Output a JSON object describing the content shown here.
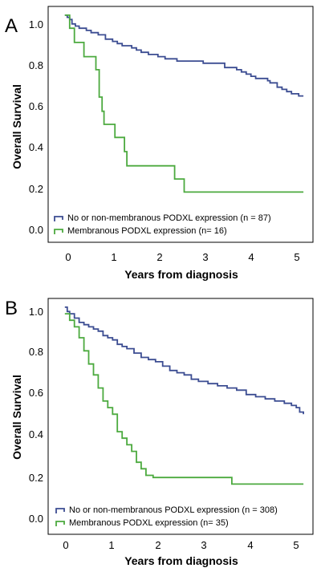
{
  "chart_data": [
    {
      "type": "line",
      "panel": "A",
      "xlabel": "Years from diagnosis",
      "ylabel": "Overall Survival",
      "xlim": [
        -0.35,
        5.2
      ],
      "ylim": [
        -0.04,
        1.04
      ],
      "xticks": [
        "0",
        "1",
        "2",
        "3",
        "4",
        "5"
      ],
      "yticks": [
        "0.0",
        "0.2",
        "0.4",
        "0.6",
        "0.8",
        "1.0"
      ],
      "grid": false,
      "legend_position": "bottom-left",
      "series": [
        {
          "name": "No or non-membranous PODXL expression (n = 87)",
          "color": "#3c4d92",
          "step": "post",
          "x": [
            0,
            0.05,
            0.1,
            0.15,
            0.22,
            0.3,
            0.45,
            0.55,
            0.7,
            0.85,
            1.0,
            1.1,
            1.2,
            1.4,
            1.5,
            1.6,
            1.75,
            1.95,
            2.1,
            2.35,
            2.6,
            2.9,
            3.2,
            3.35,
            3.6,
            3.7,
            3.8,
            3.9,
            4.0,
            4.15,
            4.25,
            4.3,
            4.45,
            4.55,
            4.65,
            4.75,
            4.9,
            5.0
          ],
          "y": [
            1.0,
            0.99,
            0.98,
            0.96,
            0.95,
            0.94,
            0.93,
            0.92,
            0.91,
            0.89,
            0.88,
            0.87,
            0.86,
            0.85,
            0.84,
            0.83,
            0.82,
            0.81,
            0.8,
            0.79,
            0.79,
            0.78,
            0.78,
            0.76,
            0.75,
            0.74,
            0.73,
            0.72,
            0.71,
            0.71,
            0.7,
            0.69,
            0.67,
            0.66,
            0.65,
            0.64,
            0.63,
            0.63
          ]
        },
        {
          "name": "Membranous PODXL expression (n= 16)",
          "color": "#4caa3f",
          "step": "post",
          "x": [
            0,
            0.1,
            0.2,
            0.4,
            0.65,
            0.72,
            0.78,
            0.82,
            1.05,
            1.25,
            1.3,
            2.3,
            2.5,
            5.0
          ],
          "y": [
            1.0,
            0.94,
            0.875,
            0.81,
            0.75,
            0.625,
            0.56,
            0.5,
            0.44,
            0.375,
            0.31,
            0.25,
            0.19,
            0.19
          ]
        }
      ]
    },
    {
      "type": "line",
      "panel": "B",
      "xlabel": "Years from diagnosis",
      "ylabel": "Overall Survival",
      "xlim": [
        -0.35,
        5.2
      ],
      "ylim": [
        -0.04,
        1.04
      ],
      "xticks": [
        "0",
        "1",
        "2",
        "3",
        "4",
        "5"
      ],
      "yticks": [
        "0.0",
        "0.2",
        "0.4",
        "0.6",
        "0.8",
        "1.0"
      ],
      "grid": false,
      "legend_position": "bottom-left",
      "series": [
        {
          "name": "No or non-membranous PODXL expression (n = 308)",
          "color": "#3c4d92",
          "step": "post",
          "x": [
            0,
            0.05,
            0.1,
            0.2,
            0.3,
            0.4,
            0.5,
            0.6,
            0.7,
            0.8,
            0.9,
            1.0,
            1.1,
            1.2,
            1.3,
            1.45,
            1.6,
            1.75,
            1.9,
            2.05,
            2.2,
            2.35,
            2.5,
            2.65,
            2.8,
            3.0,
            3.2,
            3.4,
            3.6,
            3.8,
            4.0,
            4.2,
            4.4,
            4.6,
            4.75,
            4.85,
            4.92,
            5.0
          ],
          "y": [
            1.0,
            0.98,
            0.97,
            0.95,
            0.93,
            0.92,
            0.91,
            0.9,
            0.89,
            0.87,
            0.86,
            0.85,
            0.83,
            0.82,
            0.81,
            0.79,
            0.77,
            0.76,
            0.75,
            0.73,
            0.71,
            0.7,
            0.69,
            0.67,
            0.66,
            0.65,
            0.64,
            0.63,
            0.62,
            0.6,
            0.59,
            0.58,
            0.57,
            0.56,
            0.55,
            0.54,
            0.52,
            0.51
          ]
        },
        {
          "name": "Membranous PODXL expression (n= 35)",
          "color": "#4caa3f",
          "step": "post",
          "x": [
            0,
            0.1,
            0.2,
            0.3,
            0.4,
            0.5,
            0.6,
            0.7,
            0.8,
            0.9,
            1.0,
            1.1,
            1.2,
            1.3,
            1.4,
            1.5,
            1.6,
            1.7,
            1.85,
            3.5,
            5.0
          ],
          "y": [
            0.97,
            0.94,
            0.91,
            0.86,
            0.8,
            0.74,
            0.69,
            0.63,
            0.57,
            0.54,
            0.51,
            0.43,
            0.4,
            0.37,
            0.34,
            0.29,
            0.26,
            0.23,
            0.22,
            0.19,
            0.19
          ]
        }
      ]
    }
  ],
  "panels": [
    {
      "letter": "A",
      "xlabel": "Years from diagnosis",
      "ylabel": "Overall Survival",
      "xticks": [
        "0",
        "1",
        "2",
        "3",
        "4",
        "5"
      ],
      "yticks": [
        "0.0",
        "0.2",
        "0.4",
        "0.6",
        "0.8",
        "1.0"
      ],
      "legend": [
        "No or non-membranous PODXL expression (n = 87)",
        "Membranous PODXL expression (n= 16)"
      ]
    },
    {
      "letter": "B",
      "xlabel": "Years from diagnosis",
      "ylabel": "Overall Survival",
      "xticks": [
        "0",
        "1",
        "2",
        "3",
        "4",
        "5"
      ],
      "yticks": [
        "0.0",
        "0.2",
        "0.4",
        "0.6",
        "0.8",
        "1.0"
      ],
      "legend": [
        "No or non-membranous PODXL expression (n = 308)",
        "Membranous PODXL expression (n= 35)"
      ]
    }
  ]
}
